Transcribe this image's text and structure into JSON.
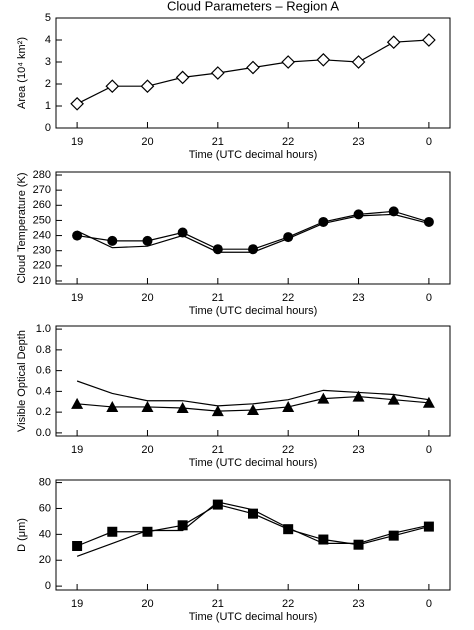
{
  "chart_data": [
    {
      "type": "line",
      "title": "Cloud Parameters – Region A",
      "xlabel": "Time (UTC decimal hours)",
      "ylabel": "Area (10⁴ km²)",
      "x": [
        19,
        19.5,
        20,
        20.5,
        21,
        21.5,
        22,
        22.5,
        23,
        23.5,
        24
      ],
      "xlim": [
        18.7,
        24.3
      ],
      "xticks": [
        19,
        20,
        21,
        22,
        23,
        {
          "value": 24,
          "label": "0"
        }
      ],
      "ylim": [
        0,
        5
      ],
      "yticks": [
        0,
        1,
        2,
        3,
        4,
        5
      ],
      "series": [
        {
          "color": "#000000",
          "marker": "diamond",
          "values": [
            1.1,
            1.9,
            1.9,
            2.3,
            2.5,
            2.75,
            3.0,
            3.1,
            3.0,
            3.9,
            4.0
          ]
        }
      ]
    },
    {
      "type": "line",
      "xlabel": "Time (UTC decimal hours)",
      "ylabel": "Cloud Temperature (K)",
      "x": [
        19,
        19.5,
        20,
        20.5,
        21,
        21.5,
        22,
        22.5,
        23,
        23.5,
        24
      ],
      "xlim": [
        18.7,
        24.3
      ],
      "xticks": [
        19,
        20,
        21,
        22,
        23,
        {
          "value": 24,
          "label": "0"
        }
      ],
      "ylim": [
        208,
        282
      ],
      "yticks": [
        210,
        220,
        230,
        240,
        250,
        260,
        270,
        280
      ],
      "series": [
        {
          "color": "#000000",
          "marker": "circle",
          "values": [
            240,
            236.5,
            236.5,
            242,
            231,
            231,
            239,
            249,
            254,
            256,
            249
          ]
        },
        {
          "color": "#000000",
          "values": [
            243,
            232,
            233,
            240,
            229,
            229,
            238,
            248,
            253,
            254,
            248
          ]
        }
      ]
    },
    {
      "type": "line",
      "xlabel": "Time (UTC decimal hours)",
      "ylabel": "Visible Optical Depth",
      "x": [
        19,
        19.5,
        20,
        20.5,
        21,
        21.5,
        22,
        22.5,
        23,
        23.5,
        24
      ],
      "xlim": [
        18.7,
        24.3
      ],
      "xticks": [
        19,
        20,
        21,
        22,
        23,
        {
          "value": 24,
          "label": "0"
        }
      ],
      "ylim": [
        -0.03,
        1.03
      ],
      "yticks": [
        {
          "value": 0,
          "label": "0.0"
        },
        0.2,
        0.4,
        0.6,
        0.8,
        {
          "value": 1,
          "label": "1.0"
        }
      ],
      "series": [
        {
          "color": "#000000",
          "marker": "triangle",
          "values": [
            0.28,
            0.25,
            0.25,
            0.24,
            0.21,
            0.22,
            0.25,
            0.33,
            0.35,
            0.32,
            0.29
          ]
        },
        {
          "color": "#000000",
          "values": [
            0.5,
            0.38,
            0.31,
            0.31,
            0.26,
            0.28,
            0.32,
            0.41,
            0.39,
            0.37,
            0.32
          ]
        }
      ]
    },
    {
      "type": "line",
      "xlabel": "Time (UTC decimal hours)",
      "ylabel": "D (μm)",
      "x": [
        19,
        19.5,
        20,
        20.5,
        21,
        21.5,
        22,
        22.5,
        23,
        23.5,
        24
      ],
      "xlim": [
        18.7,
        24.3
      ],
      "xticks": [
        19,
        20,
        21,
        22,
        23,
        {
          "value": 24,
          "label": "0"
        }
      ],
      "ylim": [
        -3,
        82
      ],
      "yticks": [
        0,
        20,
        40,
        60,
        80
      ],
      "series": [
        {
          "color": "#000000",
          "marker": "square",
          "values": [
            31,
            42,
            42,
            47,
            63,
            56,
            44,
            36,
            32,
            39,
            46
          ]
        },
        {
          "color": "#000000",
          "values": [
            23,
            33,
            43,
            43,
            65,
            59,
            45,
            33,
            33,
            41,
            47
          ]
        }
      ]
    }
  ]
}
